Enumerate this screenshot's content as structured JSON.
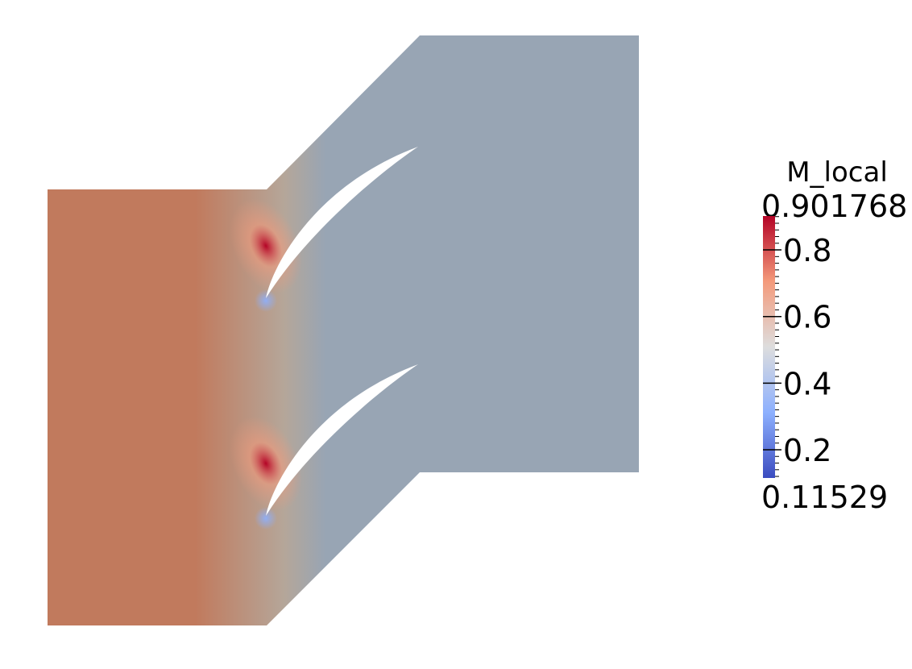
{
  "chart_data": {
    "type": "heatmap",
    "field": "M_local",
    "colorbar": {
      "title": "M_local",
      "max_label": "0.901768",
      "min_label": "0.11529",
      "min": 0.11529,
      "max": 0.901768,
      "ticks": [
        {
          "value": 0.8,
          "label": "0.8"
        },
        {
          "value": 0.6,
          "label": "0.6"
        },
        {
          "value": 0.4,
          "label": "0.4"
        },
        {
          "value": 0.2,
          "label": "0.2"
        }
      ],
      "colormap": "cool-to-warm",
      "colormap_stops": [
        "#3b4cc0",
        "#8db0fe",
        "#dddddd",
        "#f49a7b",
        "#b40426"
      ]
    },
    "domain_colors": {
      "inlet": "#c17a5d",
      "outlet": "#98a5b4",
      "passage_mid": "#b5a699"
    },
    "blade_count": 2
  }
}
